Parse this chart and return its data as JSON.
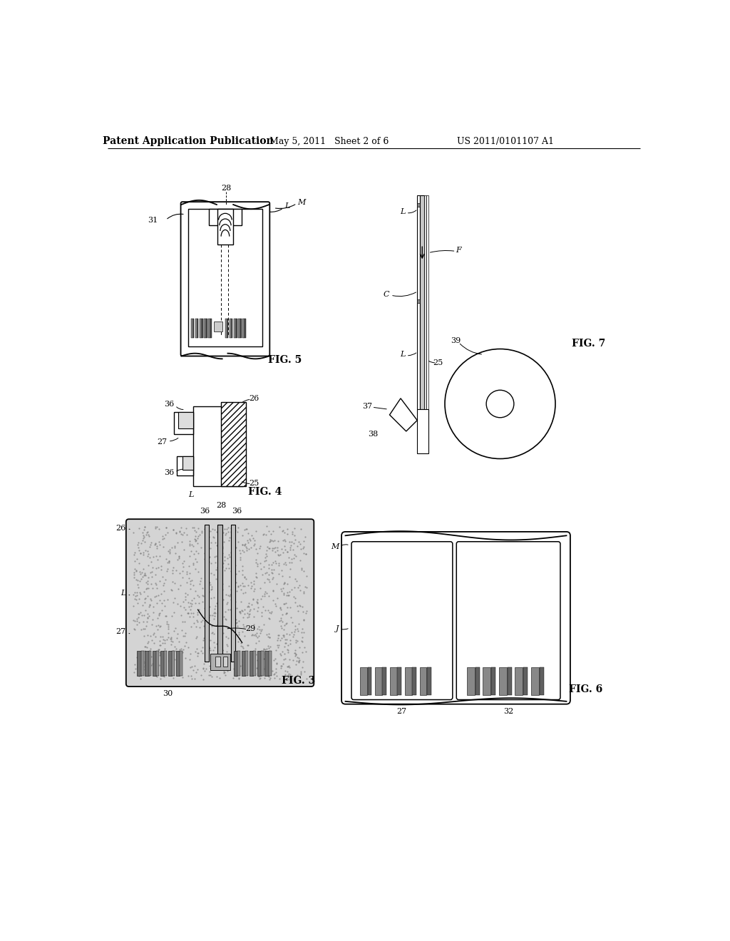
{
  "bg_color": "#ffffff",
  "header_text": "Patent Application Publication",
  "header_date": "May 5, 2011   Sheet 2 of 6",
  "header_patent": "US 2011/0101107 A1",
  "fig5_label": "FIG. 5",
  "fig7_label": "FIG. 7",
  "fig4_label": "FIG. 4",
  "fig3_label": "FIG. 3",
  "fig6_label": "FIG. 6",
  "line_color": "#000000",
  "hatch_gray": "#909090"
}
